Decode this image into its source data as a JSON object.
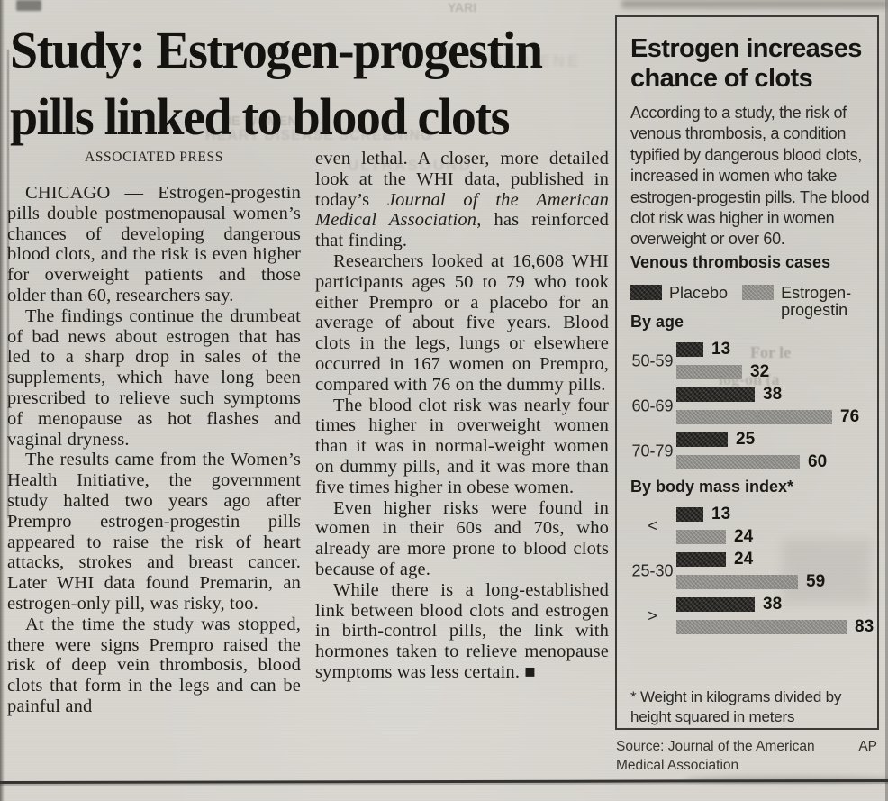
{
  "article": {
    "headline_lines": [
      "Study: Estrogen-progestin",
      "pills linked to blood clots"
    ],
    "byline": "ASSOCIATED PRESS",
    "column1": [
      "CHICAGO — Estrogen-progestin pills double postmenopausal women’s chances of developing dangerous blood clots, and the risk is even higher for overweight patients and those older than 60, researchers say.",
      "The findings continue the drumbeat of bad news about estrogen that has led to a sharp drop in sales of the supplements, which have long been prescribed to relieve such symptoms of menopause as hot flashes and vaginal dryness.",
      "The results came from the Women’s Health Initiative, the government study halted two years ago after Prempro estrogen-progestin pills appeared to raise the risk of heart attacks, strokes and breast cancer. Later WHI data found Premarin, an estrogen-only pill, was risky, too.",
      "At the time the study was stopped, there were signs Prempro raised the risk of deep vein thrombosis, blood clots that form in the legs and can be painful and"
    ],
    "column2_first": {
      "before": "even lethal. A closer, more detailed look at the WHI data, published in today’s ",
      "italic": "Journal of the American Medical Association",
      "after": ", has reinforced that finding."
    },
    "column2": [
      "Researchers looked at 16,608 WHI participants ages 50 to 79 who took either Prempro or a placebo for an average of about five years. Blood clots in the legs, lungs or elsewhere occurred in 167 women on Prempro, compared with 76 on the dummy pills.",
      "The blood clot risk was nearly four times higher in overweight women than it was in normal-weight women on dummy pills, and it was more than five times higher in obese women.",
      "Even higher risks were found in women in their 60s and 70s, who already are more prone to blood clots because of age.",
      "While there is a long-established link between blood clots and estrogen in birth-control pills, the link with hormones taken to relieve menopause symptoms was less certain. ■"
    ]
  },
  "infographic": {
    "title": "Estrogen increases chance of clots",
    "intro": "According to a study, the risk of venous thrombosis, a condition typified by dangerous blood clots, increased in women who take estrogen-progestin pills. The blood clot risk was higher in women overweight or over 60.",
    "chart_heading": "Venous thrombosis cases",
    "footnote": "* Weight in kilograms divided by height squared in meters",
    "source": "Source: Journal of the American Medical Association",
    "credit": "AP"
  },
  "chart_data": {
    "type": "bar",
    "orientation": "horizontal",
    "title": "Venous thrombosis cases",
    "legend_position": "top",
    "series_names": [
      "Placebo",
      "Estrogen-progestin"
    ],
    "series_colors": [
      "#33312d",
      "#908e89"
    ],
    "sections": [
      {
        "label": "By age",
        "categories": [
          "50-59",
          "60-69",
          "70-79"
        ],
        "series": [
          {
            "name": "Placebo",
            "values": [
              13,
              38,
              25
            ]
          },
          {
            "name": "Estrogen-progestin",
            "values": [
              32,
              76,
              60
            ]
          }
        ]
      },
      {
        "label": "By body mass index*",
        "categories": [
          "<",
          "25-30",
          ">"
        ],
        "series": [
          {
            "name": "Placebo",
            "values": [
              13,
              24,
              38
            ]
          },
          {
            "name": "Estrogen-progestin",
            "values": [
              24,
              59,
              83
            ]
          }
        ]
      }
    ],
    "value_labels_shown": true,
    "xmax": 90,
    "footnote": "* Weight in kilograms divided by height squared in meters"
  },
  "scan_artifacts": {
    "ghost_texts": [
      "MULLAR MED ENE",
      "HEART DISEASE SCREENING",
      "ULTRASOUND",
      "HE WOMEN",
      "For le",
      "log-on (a",
      "YARI"
    ]
  },
  "colors": {
    "paper": "#d8d5cf",
    "ink": "#1f1e1a",
    "placebo_bar": "#33312d",
    "estrogen_bar": "#908e89",
    "box_border": "#3c3a36"
  }
}
